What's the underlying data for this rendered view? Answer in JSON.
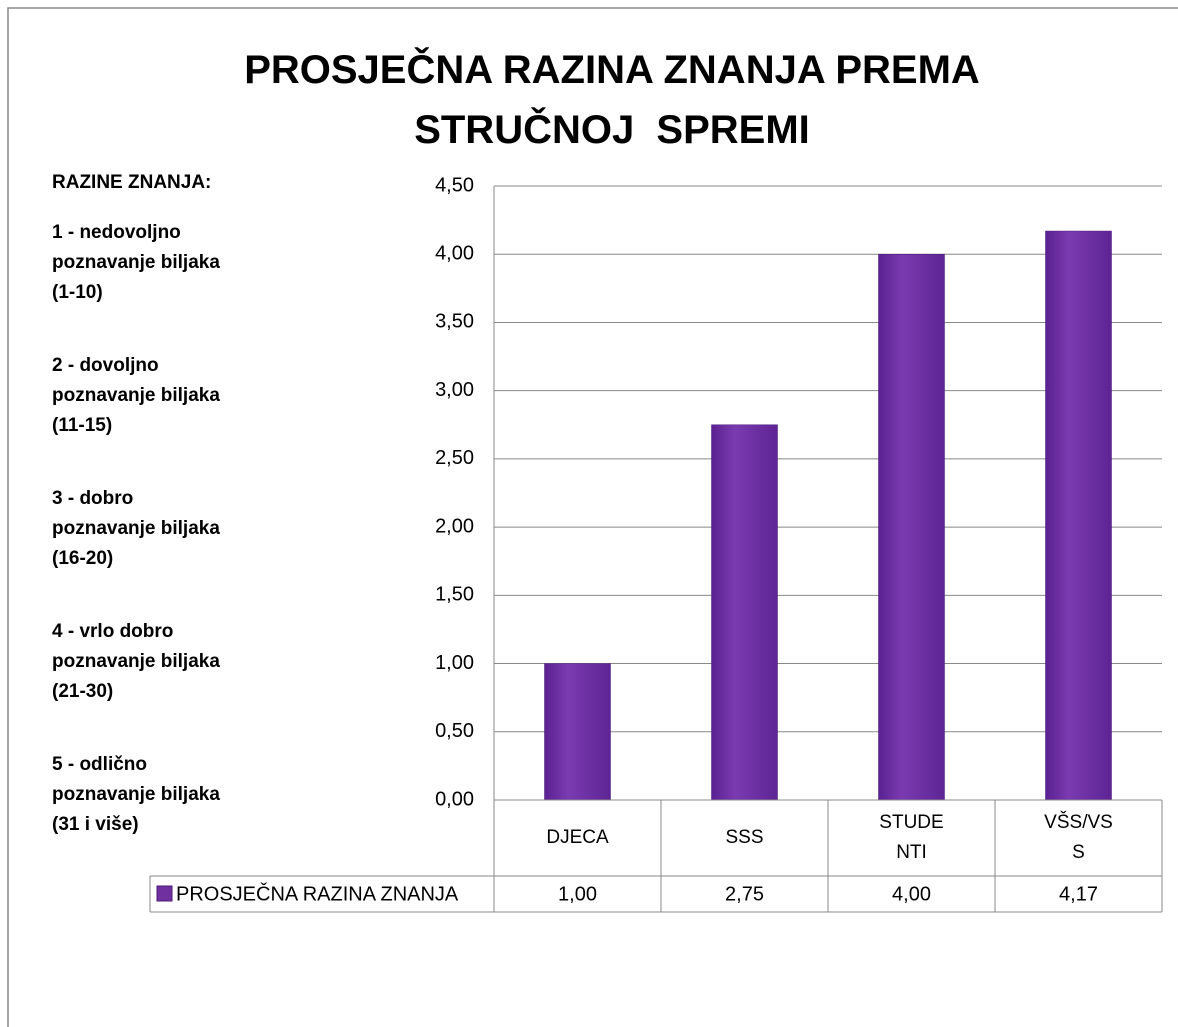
{
  "chart_data": {
    "type": "bar",
    "title": "PROSJEČNA RAZINA ZNANJA PREMA STRUČNOJ  SPREMI",
    "levels_title": "RAZINE ZNANJA:",
    "levels": [
      [
        "1 - nedovoljno",
        "poznavanje biljaka",
        "(1-10)"
      ],
      [
        "2 - dovoljno",
        "poznavanje biljaka",
        "(11-15)"
      ],
      [
        "3 - dobro",
        "poznavanje biljaka",
        "(16-20)"
      ],
      [
        "4 - vrlo dobro",
        "poznavanje biljaka",
        "(21-30)"
      ],
      [
        "5 - odlično",
        "poznavanje biljaka",
        "(31 i više)"
      ]
    ],
    "categories": [
      "DJECA",
      "SSS",
      "STUDENTI",
      "VŠS/VSS"
    ],
    "series": [
      {
        "name": "PROSJEČNA RAZINA ZNANJA",
        "color": "#7030a0",
        "values": [
          1.0,
          2.75,
          4.0,
          4.17
        ],
        "value_labels": [
          "1,00",
          "2,75",
          "4,00",
          "4,17"
        ]
      }
    ],
    "ylim": [
      0,
      4.5
    ],
    "yticks": [
      {
        "value": 0,
        "label": "0,00"
      },
      {
        "value": 0.5,
        "label": "0,50"
      },
      {
        "value": 1,
        "label": "1,00"
      },
      {
        "value": 1.5,
        "label": "1,50"
      },
      {
        "value": 2,
        "label": "2,00"
      },
      {
        "value": 2.5,
        "label": "2,50"
      },
      {
        "value": 3,
        "label": "3,00"
      },
      {
        "value": 3.5,
        "label": "3,50"
      },
      {
        "value": 4,
        "label": "4,00"
      },
      {
        "value": 4.5,
        "label": "4,50"
      }
    ],
    "grid": true,
    "data_table": true
  }
}
